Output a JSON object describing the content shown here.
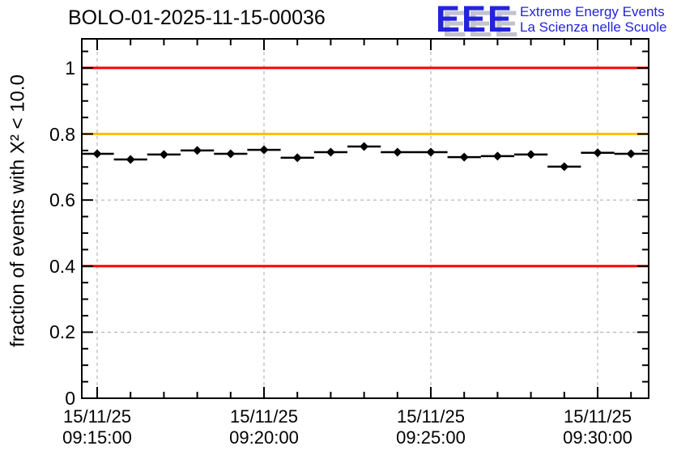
{
  "header": {
    "logo": {
      "acronym": "EEE",
      "line1": "Extreme Energy Events",
      "line2": "La Scienza nelle Scuole",
      "color": "#2323dd",
      "shadow_color": "#c3c3cf"
    }
  },
  "chart_data": {
    "type": "scatter",
    "title": "BOLO-01-2025-11-15-00036",
    "xlabel": "",
    "ylabel": "fraction of events with X² < 10.0",
    "ylim": [
      0,
      1.088
    ],
    "grid": true,
    "grid_color": "#a9a9a9",
    "marker": "diamond",
    "marker_color": "#000000",
    "bin_width_minutes": 1,
    "x_times": [
      "09:15:00",
      "09:16:00",
      "09:17:00",
      "09:18:00",
      "09:19:00",
      "09:20:00",
      "09:21:00",
      "09:22:00",
      "09:23:00",
      "09:24:00",
      "09:25:00",
      "09:26:00",
      "09:27:00",
      "09:28:00",
      "09:29:00",
      "09:30:00",
      "09:31:00"
    ],
    "values": [
      0.74,
      0.723,
      0.738,
      0.75,
      0.74,
      0.752,
      0.728,
      0.745,
      0.762,
      0.745,
      0.745,
      0.73,
      0.733,
      0.738,
      0.701,
      0.743,
      0.74
    ],
    "x_ticks": [
      {
        "index": 0,
        "date": "15/11/25",
        "time": "09:15:00"
      },
      {
        "index": 5,
        "date": "15/11/25",
        "time": "09:20:00"
      },
      {
        "index": 10,
        "date": "15/11/25",
        "time": "09:25:00"
      },
      {
        "index": 15,
        "date": "15/11/25",
        "time": "09:30:00"
      }
    ],
    "y_ticks": [
      {
        "v": 0,
        "label": "0"
      },
      {
        "v": 0.2,
        "label": "0.2"
      },
      {
        "v": 0.4,
        "label": "0.4"
      },
      {
        "v": 0.6,
        "label": "0.6"
      },
      {
        "v": 0.8,
        "label": "0.8"
      },
      {
        "v": 1,
        "label": "1"
      }
    ],
    "y_minor_step": 0.05,
    "reference_lines": [
      {
        "y": 1.0,
        "color": "#ff0000",
        "name": "upper-red-limit"
      },
      {
        "y": 0.8,
        "color": "#ffc000",
        "name": "orange-warning-level"
      },
      {
        "y": 0.4,
        "color": "#ff0000",
        "name": "lower-red-limit"
      }
    ]
  }
}
